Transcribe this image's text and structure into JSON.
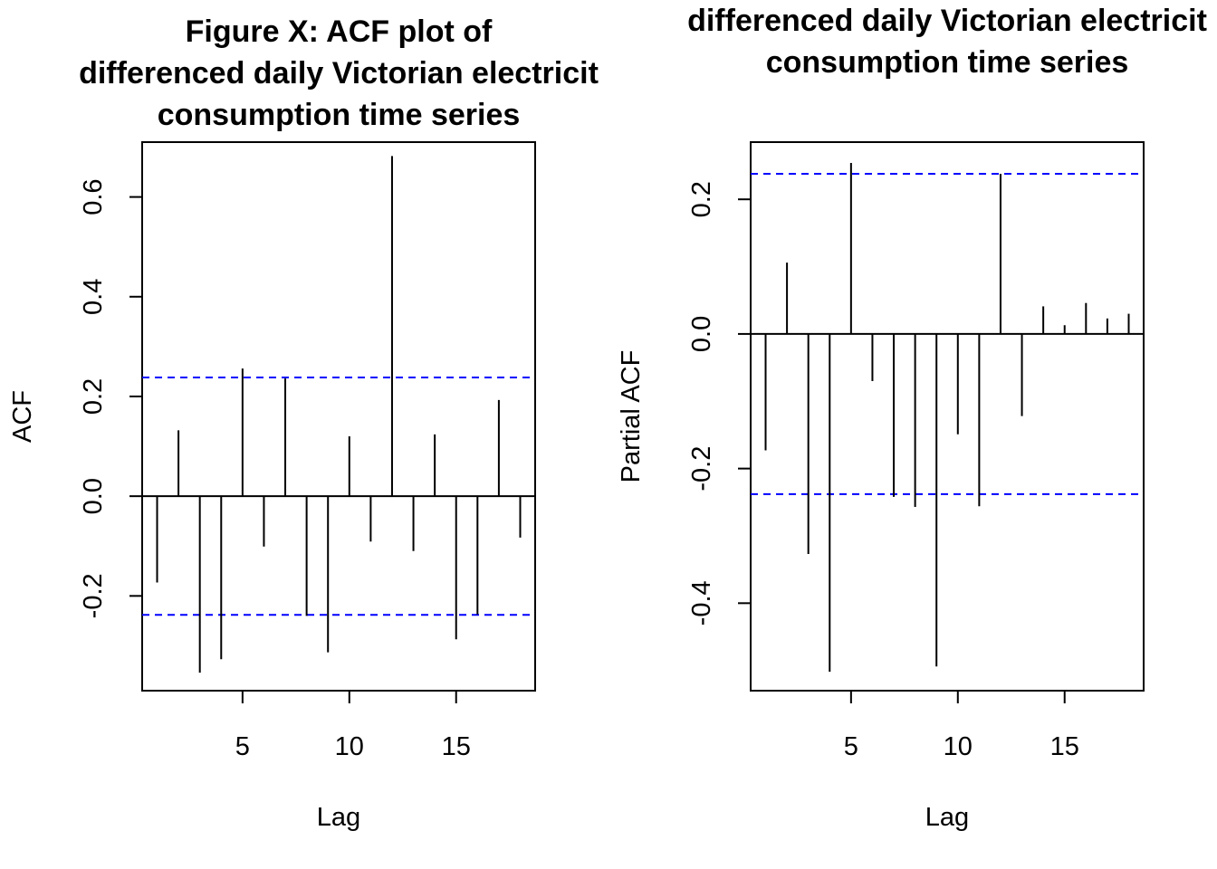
{
  "chart_data": [
    {
      "type": "bar",
      "title_lines": [
        "Figure X: ACF plot of",
        "differenced daily Victorian electricit",
        "consumption time series"
      ],
      "xlabel": "Lag",
      "ylabel": "ACF",
      "xlim": [
        0.3,
        18.7
      ],
      "ylim": [
        -0.39,
        0.71
      ],
      "xticks": [
        5,
        10,
        15
      ],
      "yticks": [
        -0.2,
        0.0,
        0.2,
        0.4,
        0.6
      ],
      "ytick_labels": [
        "-0.2",
        "0.0",
        "0.2",
        "0.4",
        "0.6"
      ],
      "confidence_bound": 0.238,
      "confidence_color": "#0000ff",
      "lags": [
        1,
        2,
        3,
        4,
        5,
        6,
        7,
        8,
        9,
        10,
        11,
        12,
        13,
        14,
        15,
        16,
        17,
        18
      ],
      "values": [
        -0.173,
        0.132,
        -0.354,
        -0.327,
        0.256,
        -0.101,
        0.236,
        -0.24,
        -0.313,
        0.12,
        -0.091,
        0.682,
        -0.11,
        0.124,
        -0.287,
        -0.237,
        0.193,
        -0.083
      ]
    },
    {
      "type": "bar",
      "title_lines": [
        "differenced daily Victorian electricit",
        "consumption time series"
      ],
      "xlabel": "Lag",
      "ylabel": "Partial ACF",
      "xlim": [
        0.3,
        18.7
      ],
      "ylim": [
        -0.53,
        0.285
      ],
      "xticks": [
        5,
        10,
        15
      ],
      "yticks": [
        -0.4,
        -0.2,
        0.0,
        0.2
      ],
      "ytick_labels": [
        "-0.4",
        "-0.2",
        "0.0",
        "0.2"
      ],
      "confidence_bound": 0.238,
      "confidence_color": "#0000ff",
      "lags": [
        1,
        2,
        3,
        4,
        5,
        6,
        7,
        8,
        9,
        10,
        11,
        12,
        13,
        14,
        15,
        16,
        17,
        18
      ],
      "values": [
        -0.173,
        0.106,
        -0.327,
        -0.502,
        0.254,
        -0.07,
        -0.242,
        -0.257,
        -0.494,
        -0.149,
        -0.256,
        0.238,
        -0.122,
        0.041,
        0.013,
        0.046,
        0.023,
        0.03
      ]
    }
  ]
}
